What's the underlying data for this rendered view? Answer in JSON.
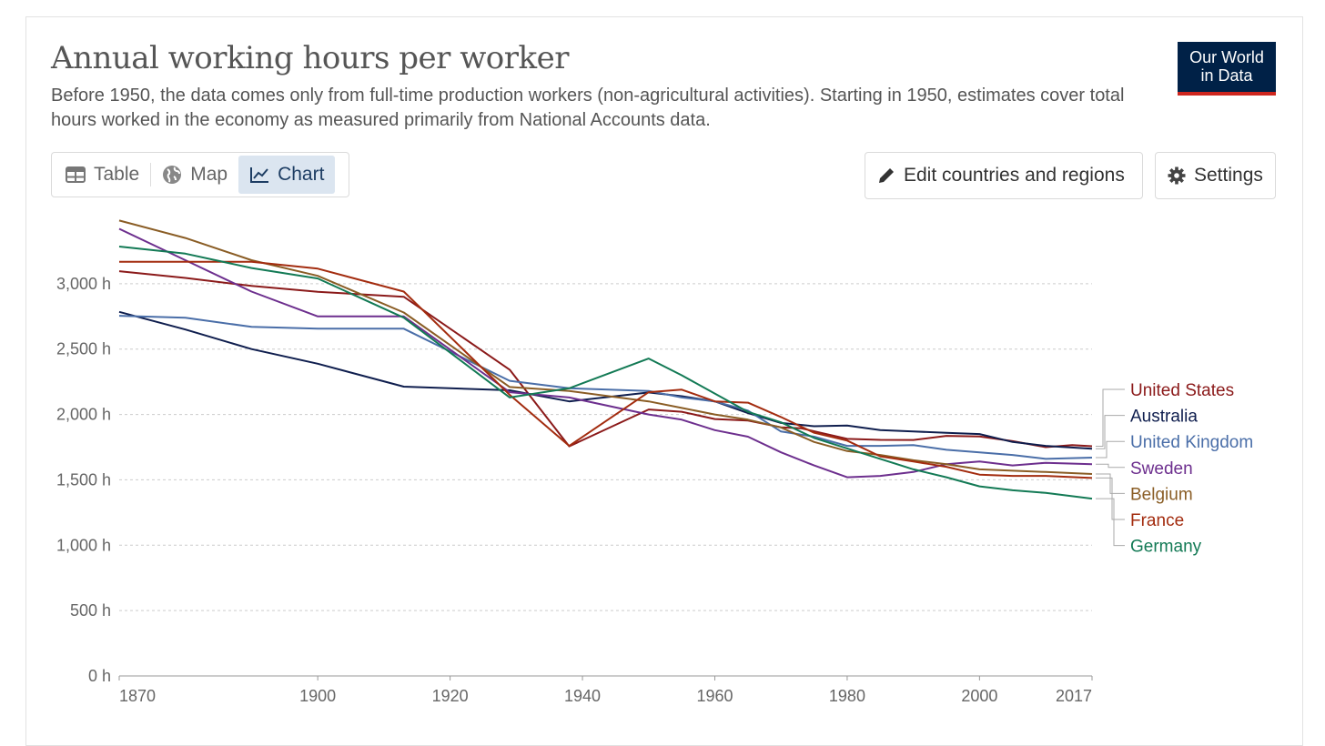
{
  "header": {
    "title": "Annual working hours per worker",
    "subtitle": "Before 1950, the data comes only from full-time production workers (non-agricultural activities). Starting in 1950, estimates cover total hours worked in the economy as measured primarily from National Accounts data."
  },
  "logo": {
    "line1": "Our World",
    "line2": "in Data"
  },
  "tabs": [
    {
      "label": "Table",
      "icon": "table-icon",
      "active": false
    },
    {
      "label": "Map",
      "icon": "globe-icon",
      "active": false
    },
    {
      "label": "Chart",
      "icon": "line-chart-icon",
      "active": true
    }
  ],
  "controls": {
    "edit_label": "Edit countries and regions",
    "settings_label": "Settings"
  },
  "chart_data": {
    "type": "line",
    "title": "Annual working hours per worker",
    "xlim": [
      1870,
      2017
    ],
    "ylim": [
      0,
      3500
    ],
    "x_ticks": [
      1870,
      1900,
      1920,
      1940,
      1960,
      1980,
      2000,
      2017
    ],
    "y_ticks": [
      0,
      500,
      1000,
      1500,
      2000,
      2500,
      3000
    ],
    "y_tick_labels": [
      "0 h",
      "500 h",
      "1,000 h",
      "1,500 h",
      "2,000 h",
      "2,500 h",
      "3,000 h"
    ],
    "grid": "horizontal dashed",
    "legend_placement": "right, at line ends",
    "series": [
      {
        "name": "United States",
        "color": "#8b1a1a",
        "points": [
          [
            1870,
            3096
          ],
          [
            1880,
            3044
          ],
          [
            1890,
            2983
          ],
          [
            1900,
            2938
          ],
          [
            1913,
            2900
          ],
          [
            1929,
            2342
          ],
          [
            1938,
            1756
          ],
          [
            1950,
            2038
          ],
          [
            1955,
            2021
          ],
          [
            1960,
            1965
          ],
          [
            1965,
            1953
          ],
          [
            1970,
            1902
          ],
          [
            1973,
            1895
          ],
          [
            1980,
            1813
          ],
          [
            1985,
            1806
          ],
          [
            1990,
            1805
          ],
          [
            1995,
            1836
          ],
          [
            2000,
            1832
          ],
          [
            2005,
            1796
          ],
          [
            2010,
            1750
          ],
          [
            2014,
            1766
          ],
          [
            2017,
            1757
          ]
        ]
      },
      {
        "name": "Australia",
        "color": "#0f1e4e",
        "points": [
          [
            1870,
            2785
          ],
          [
            1880,
            2650
          ],
          [
            1890,
            2500
          ],
          [
            1900,
            2388
          ],
          [
            1913,
            2213
          ],
          [
            1929,
            2185
          ],
          [
            1938,
            2100
          ],
          [
            1950,
            2168
          ],
          [
            1955,
            2140
          ],
          [
            1960,
            2100
          ],
          [
            1965,
            2010
          ],
          [
            1970,
            1935
          ],
          [
            1975,
            1910
          ],
          [
            1980,
            1915
          ],
          [
            1985,
            1880
          ],
          [
            1990,
            1870
          ],
          [
            1995,
            1860
          ],
          [
            2000,
            1850
          ],
          [
            2005,
            1790
          ],
          [
            2010,
            1760
          ],
          [
            2017,
            1738
          ]
        ]
      },
      {
        "name": "United Kingdom",
        "color": "#4a6ea8",
        "points": [
          [
            1870,
            2755
          ],
          [
            1880,
            2740
          ],
          [
            1890,
            2670
          ],
          [
            1900,
            2656
          ],
          [
            1913,
            2656
          ],
          [
            1929,
            2257
          ],
          [
            1938,
            2200
          ],
          [
            1950,
            2180
          ],
          [
            1955,
            2130
          ],
          [
            1960,
            2100
          ],
          [
            1965,
            2030
          ],
          [
            1970,
            1870
          ],
          [
            1975,
            1830
          ],
          [
            1980,
            1760
          ],
          [
            1985,
            1760
          ],
          [
            1990,
            1765
          ],
          [
            1995,
            1730
          ],
          [
            2000,
            1710
          ],
          [
            2005,
            1690
          ],
          [
            2010,
            1660
          ],
          [
            2017,
            1670
          ]
        ]
      },
      {
        "name": "Sweden",
        "color": "#6d2f8e",
        "points": [
          [
            1870,
            3420
          ],
          [
            1880,
            3180
          ],
          [
            1890,
            2940
          ],
          [
            1900,
            2750
          ],
          [
            1913,
            2750
          ],
          [
            1929,
            2170
          ],
          [
            1938,
            2130
          ],
          [
            1950,
            2000
          ],
          [
            1955,
            1960
          ],
          [
            1960,
            1880
          ],
          [
            1965,
            1830
          ],
          [
            1970,
            1710
          ],
          [
            1975,
            1610
          ],
          [
            1980,
            1520
          ],
          [
            1985,
            1530
          ],
          [
            1990,
            1560
          ],
          [
            1995,
            1620
          ],
          [
            2000,
            1640
          ],
          [
            2005,
            1610
          ],
          [
            2010,
            1630
          ],
          [
            2017,
            1620
          ]
        ]
      },
      {
        "name": "Belgium",
        "color": "#8a5d25",
        "points": [
          [
            1870,
            3483
          ],
          [
            1880,
            3350
          ],
          [
            1890,
            3180
          ],
          [
            1900,
            3060
          ],
          [
            1913,
            2780
          ],
          [
            1929,
            2210
          ],
          [
            1938,
            2180
          ],
          [
            1950,
            2100
          ],
          [
            1955,
            2050
          ],
          [
            1960,
            2000
          ],
          [
            1965,
            1960
          ],
          [
            1970,
            1900
          ],
          [
            1975,
            1790
          ],
          [
            1980,
            1720
          ],
          [
            1985,
            1690
          ],
          [
            1990,
            1650
          ],
          [
            1995,
            1620
          ],
          [
            2000,
            1580
          ],
          [
            2005,
            1570
          ],
          [
            2010,
            1560
          ],
          [
            2017,
            1545
          ]
        ]
      },
      {
        "name": "France",
        "color": "#a32c0f",
        "points": [
          [
            1870,
            3168
          ],
          [
            1880,
            3168
          ],
          [
            1890,
            3168
          ],
          [
            1900,
            3115
          ],
          [
            1913,
            2940
          ],
          [
            1929,
            2150
          ],
          [
            1938,
            1760
          ],
          [
            1950,
            2170
          ],
          [
            1955,
            2190
          ],
          [
            1960,
            2100
          ],
          [
            1965,
            2090
          ],
          [
            1970,
            1980
          ],
          [
            1975,
            1860
          ],
          [
            1980,
            1800
          ],
          [
            1985,
            1680
          ],
          [
            1990,
            1640
          ],
          [
            1995,
            1600
          ],
          [
            2000,
            1540
          ],
          [
            2005,
            1530
          ],
          [
            2010,
            1530
          ],
          [
            2017,
            1514
          ]
        ]
      },
      {
        "name": "Germany",
        "color": "#137a55",
        "points": [
          [
            1870,
            3284
          ],
          [
            1880,
            3230
          ],
          [
            1890,
            3120
          ],
          [
            1900,
            3040
          ],
          [
            1913,
            2740
          ],
          [
            1929,
            2130
          ],
          [
            1938,
            2200
          ],
          [
            1950,
            2428
          ],
          [
            1955,
            2300
          ],
          [
            1960,
            2160
          ],
          [
            1965,
            2020
          ],
          [
            1970,
            1940
          ],
          [
            1975,
            1820
          ],
          [
            1980,
            1740
          ],
          [
            1985,
            1660
          ],
          [
            1990,
            1580
          ],
          [
            1995,
            1520
          ],
          [
            2000,
            1450
          ],
          [
            2005,
            1420
          ],
          [
            2010,
            1400
          ],
          [
            2017,
            1356
          ]
        ]
      }
    ]
  }
}
